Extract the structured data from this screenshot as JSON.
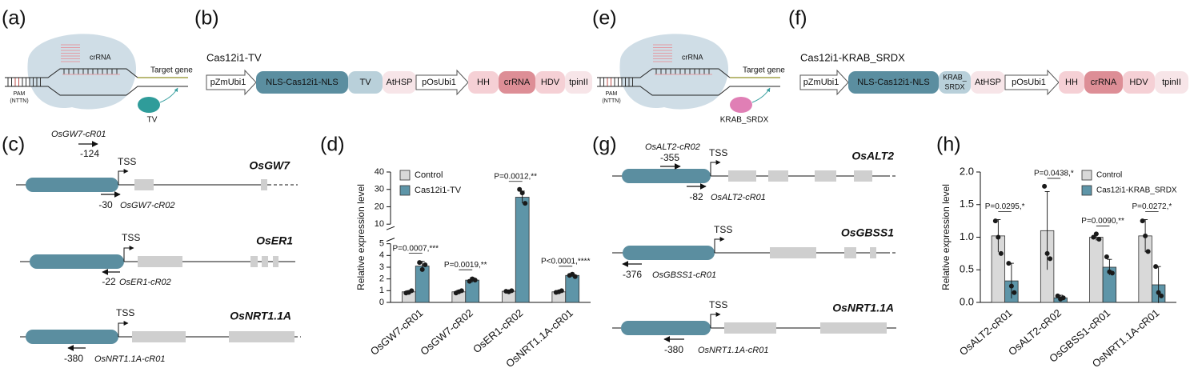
{
  "panel_labels": [
    "(a)",
    "(b)",
    "(c)",
    "(d)",
    "(e)",
    "(f)",
    "(g)",
    "(h)"
  ],
  "schematic_a": {
    "crrna": "crRNA",
    "target": "Target gene",
    "pam": [
      "PAM",
      "(NTTN)"
    ],
    "effector": "TV"
  },
  "construct_b": {
    "title": "Cas12i1-TV",
    "parts": [
      "pZmUbi1",
      "NLS-Cas12i1-NLS",
      "TV",
      "AtHSP",
      "pOsUbi1",
      "HH",
      "crRNA",
      "HDV",
      "tpinII"
    ]
  },
  "genes_c": [
    {
      "name": "OsGW7",
      "tss": "TSS",
      "guides": [
        {
          "name": "OsGW7-cR01",
          "position": -124
        },
        {
          "name": "OsGW7-cR02",
          "position": -30
        }
      ]
    },
    {
      "name": "OsER1",
      "tss": "TSS",
      "guides": [
        {
          "name": "OsER1-cR02",
          "position": -22
        }
      ]
    },
    {
      "name": "OsNRT1.1A",
      "tss": "TSS",
      "guides": [
        {
          "name": "OsNRT1.1A-cR01",
          "position": -380
        }
      ]
    }
  ],
  "schematic_e": {
    "crrna": "crRNA",
    "target": "Target gene",
    "pam": [
      "PAM",
      "(NTTN)"
    ],
    "effector": "KRAB_SRDX"
  },
  "construct_f": {
    "title": "Cas12i1-KRAB_SRDX",
    "parts": [
      "pZmUbi1",
      "NLS-Cas12i1-NLS",
      [
        "KRAB_",
        "SRDX"
      ],
      "AtHSP",
      "pOsUbi1",
      "HH",
      "crRNA",
      "HDV",
      "tpinII"
    ]
  },
  "genes_g": [
    {
      "name": "OsALT2",
      "tss": "TSS",
      "guides": [
        {
          "name": "OsALT2-cR02",
          "position": -355
        },
        {
          "name": "OsALT2-cR01",
          "position": -82
        }
      ]
    },
    {
      "name": "OsGBSS1",
      "tss": "TSS",
      "guides": [
        {
          "name": "OsGBSS1-cR01",
          "position": -376
        }
      ]
    },
    {
      "name": "OsNRT1.1A",
      "tss": "TSS",
      "guides": [
        {
          "name": "OsNRT1.1A-cR01",
          "position": -380
        }
      ]
    }
  ],
  "chart_data": [
    {
      "type": "bar",
      "y_label": "Relative expression level",
      "categories": [
        "OsGW7-cR01",
        "OsGW7-cR02",
        "OsER1-cR02",
        "OsNRT1.1A-cR01"
      ],
      "series": [
        {
          "name": "Control",
          "color": "#d9d9d9",
          "values": [
            0.9,
            0.9,
            0.95,
            0.9
          ],
          "errors": [
            0.1,
            0.12,
            0.1,
            0.1
          ],
          "points": [
            [
              0.8,
              0.85,
              1.0
            ],
            [
              0.8,
              0.9,
              1.0
            ],
            [
              0.95,
              0.9,
              1.0
            ],
            [
              0.85,
              0.9,
              1.0
            ]
          ]
        },
        {
          "name": "Cas12i1-TV",
          "color": "#5e95a8",
          "values": [
            3.1,
            1.9,
            25.5,
            2.3
          ],
          "errors": [
            0.4,
            0.2,
            3.5,
            0.1
          ],
          "points": [
            [
              3.4,
              2.8,
              3.2
            ],
            [
              1.8,
              2.0,
              1.9
            ],
            [
              30,
              28,
              22
            ],
            [
              2.3,
              2.4,
              2.2
            ]
          ]
        }
      ],
      "annotations": [
        "P=0.0007,***",
        "P=0.0019,**",
        "P=0.0012,**",
        "P<0.0001,****"
      ],
      "ylim": [
        0,
        40
      ],
      "ybreak": [
        5,
        10
      ],
      "yticks": [
        0,
        1,
        2,
        3,
        4,
        5,
        10,
        20,
        30,
        40
      ],
      "legend": "upper left"
    },
    {
      "type": "bar",
      "y_label": "Relative expression level",
      "categories": [
        "OsALT2-cR01",
        "OsALT2-cR02",
        "OsGBSS1-cR01",
        "OsNRT1.1A-cR01"
      ],
      "series": [
        {
          "name": "Control",
          "color": "#d9d9d9",
          "values": [
            1.02,
            1.1,
            1.0,
            1.02
          ],
          "errors": [
            0.25,
            0.6,
            0.05,
            0.25
          ],
          "points": [
            [
              1.25,
              1.0,
              0.75
            ],
            [
              1.78,
              0.75,
              0.67
            ],
            [
              1.0,
              1.05,
              0.97
            ],
            [
              1.25,
              1.02,
              0.78
            ]
          ]
        },
        {
          "name": "Cas12i1-KRAB_SRDX",
          "color": "#5e95a8",
          "values": [
            0.33,
            0.07,
            0.54,
            0.27
          ],
          "errors": [
            0.27,
            0.04,
            0.12,
            0.28
          ],
          "points": [
            [
              0.6,
              0.25,
              0.15
            ],
            [
              0.1,
              0.05,
              0.07
            ],
            [
              0.7,
              0.47,
              0.45
            ],
            [
              0.55,
              0.15,
              0.1
            ]
          ]
        }
      ],
      "annotations": [
        "P=0.0295,*",
        "P=0.0438,*",
        "P=0.0090,**",
        "P=0.0272,*"
      ],
      "ylim": [
        0,
        2.0
      ],
      "yticks": [
        {
          "value": 0,
          "label": "0.0"
        },
        {
          "value": 0.5,
          "label": "0.5"
        },
        {
          "value": 1,
          "label": "1.0"
        },
        {
          "value": 1.5,
          "label": "1.5"
        },
        {
          "value": 2,
          "label": "2.0"
        }
      ],
      "legend": "upper right"
    }
  ]
}
